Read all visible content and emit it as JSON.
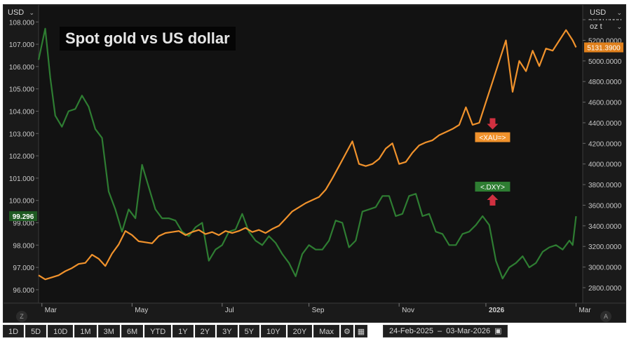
{
  "currency_left": "USD",
  "currency_right": "USD",
  "unit_right": "oz t",
  "title": "Spot gold vs US dollar",
  "zoom_left": "Z",
  "zoom_right": "A",
  "toolbar": {
    "ranges": [
      "1D",
      "5D",
      "10D",
      "1M",
      "3M",
      "6M",
      "YTD",
      "1Y",
      "2Y",
      "3Y",
      "5Y",
      "10Y",
      "20Y",
      "Max"
    ],
    "settings_icon": "gear-icon",
    "table_icon": "spreadsheet-icon",
    "calendar_icon": "calendar-icon",
    "date_from": "24-Feb-2025",
    "date_sep": "–",
    "date_to": "03-Mar-2026"
  },
  "chart_data": {
    "type": "line",
    "grid": false,
    "x_tick_labels": [
      "Mar",
      "May",
      "Jul",
      "Sep",
      "Nov",
      "2026",
      "Mar"
    ],
    "x_tick_positions": [
      0.01,
      0.28,
      0.55,
      0.81,
      1.08,
      1.34,
      1.61
    ],
    "x_range": [
      0,
      1.63
    ],
    "y_left": {
      "range": [
        95.4,
        108.7
      ],
      "ticks": [
        96.0,
        97.0,
        98.0,
        99.0,
        100.0,
        101.0,
        102.0,
        103.0,
        104.0,
        105.0,
        106.0,
        107.0,
        108.0
      ],
      "tick_labels": [
        "96.000",
        "97.000",
        "98.000",
        "99.000",
        "100.000",
        "101.000",
        "102.000",
        "103.000",
        "104.000",
        "105.000",
        "106.000",
        "107.000",
        "108.000"
      ],
      "last_value_label": "99.296",
      "last_value": 99.296
    },
    "y_right": {
      "range": [
        2650,
        5530
      ],
      "ticks": [
        2800,
        3000,
        3200,
        3400,
        3600,
        3800,
        4000,
        4200,
        4400,
        4600,
        4800,
        5000,
        5200,
        5400
      ],
      "tick_labels": [
        "2800.0000",
        "3000.0000",
        "3200.0000",
        "3400.0000",
        "3600.0000",
        "3800.0000",
        "4000.0000",
        "4200.0000",
        "4400.0000",
        "4600.0000",
        "4800.0000",
        "5000.0000",
        "5200.0000",
        "5400.0000"
      ],
      "last_value_label": "5131.3900",
      "last_value": 5131.39
    },
    "series": [
      {
        "name": "<.DXY>",
        "axis": "left",
        "color": "#2e7d32",
        "x": [
          0,
          0.02,
          0.035,
          0.05,
          0.07,
          0.09,
          0.11,
          0.13,
          0.15,
          0.17,
          0.19,
          0.21,
          0.23,
          0.25,
          0.27,
          0.29,
          0.31,
          0.33,
          0.35,
          0.37,
          0.39,
          0.41,
          0.43,
          0.45,
          0.47,
          0.49,
          0.51,
          0.53,
          0.55,
          0.57,
          0.59,
          0.61,
          0.63,
          0.65,
          0.67,
          0.69,
          0.71,
          0.73,
          0.75,
          0.77,
          0.79,
          0.81,
          0.83,
          0.85,
          0.87,
          0.89,
          0.91,
          0.93,
          0.95,
          0.97,
          0.99,
          1.01,
          1.03,
          1.05,
          1.07,
          1.09,
          1.11,
          1.13,
          1.15,
          1.17,
          1.19,
          1.21,
          1.23,
          1.25,
          1.27,
          1.29,
          1.31,
          1.33,
          1.35,
          1.37,
          1.39,
          1.41,
          1.43,
          1.45,
          1.47,
          1.49,
          1.51,
          1.53,
          1.55,
          1.57,
          1.59,
          1.6,
          1.61
        ],
        "values": [
          106.3,
          107.7,
          105.5,
          103.8,
          103.3,
          104.0,
          104.1,
          104.7,
          104.2,
          103.2,
          102.8,
          100.4,
          99.6,
          98.6,
          99.6,
          99.2,
          101.6,
          100.6,
          99.6,
          99.2,
          99.2,
          99.1,
          98.6,
          98.4,
          98.8,
          99.0,
          97.3,
          97.8,
          98.0,
          98.6,
          98.7,
          99.4,
          98.6,
          98.2,
          98.0,
          98.4,
          98.1,
          97.6,
          97.2,
          96.6,
          97.6,
          98.0,
          97.8,
          97.8,
          98.2,
          99.1,
          99.0,
          97.9,
          98.2,
          99.5,
          99.6,
          99.7,
          100.2,
          100.2,
          99.3,
          99.4,
          100.2,
          100.3,
          99.3,
          99.4,
          98.6,
          98.5,
          98.0,
          98.0,
          98.5,
          98.6,
          98.9,
          99.3,
          98.9,
          97.3,
          96.5,
          97.0,
          97.2,
          97.5,
          97.0,
          97.2,
          97.7,
          97.9,
          98.0,
          97.8,
          98.2,
          98.0,
          99.296
        ]
      },
      {
        "name": "<XAU=>",
        "axis": "right",
        "color": "#f0922c",
        "x": [
          0,
          0.02,
          0.04,
          0.06,
          0.08,
          0.1,
          0.12,
          0.14,
          0.16,
          0.18,
          0.2,
          0.22,
          0.24,
          0.26,
          0.28,
          0.3,
          0.32,
          0.34,
          0.36,
          0.38,
          0.4,
          0.42,
          0.44,
          0.46,
          0.48,
          0.5,
          0.52,
          0.54,
          0.56,
          0.58,
          0.6,
          0.62,
          0.64,
          0.66,
          0.68,
          0.7,
          0.72,
          0.74,
          0.76,
          0.78,
          0.8,
          0.82,
          0.84,
          0.86,
          0.88,
          0.9,
          0.92,
          0.94,
          0.96,
          0.98,
          1.0,
          1.02,
          1.04,
          1.06,
          1.08,
          1.1,
          1.12,
          1.14,
          1.16,
          1.18,
          1.2,
          1.22,
          1.24,
          1.26,
          1.28,
          1.3,
          1.32,
          1.34,
          1.36,
          1.38,
          1.4,
          1.42,
          1.44,
          1.46,
          1.48,
          1.5,
          1.52,
          1.54,
          1.56,
          1.58,
          1.6,
          1.61
        ],
        "values": [
          2920,
          2880,
          2900,
          2920,
          2960,
          2990,
          3030,
          3040,
          3120,
          3080,
          3010,
          3130,
          3220,
          3350,
          3310,
          3250,
          3240,
          3230,
          3300,
          3330,
          3340,
          3350,
          3310,
          3340,
          3360,
          3320,
          3340,
          3310,
          3350,
          3330,
          3350,
          3380,
          3340,
          3360,
          3330,
          3370,
          3400,
          3470,
          3540,
          3580,
          3620,
          3650,
          3680,
          3750,
          3860,
          3980,
          4100,
          4220,
          4000,
          3980,
          4000,
          4050,
          4150,
          4200,
          4000,
          4020,
          4110,
          4180,
          4210,
          4230,
          4280,
          4310,
          4340,
          4380,
          4550,
          4380,
          4400,
          4600,
          4800,
          5000,
          5200,
          4700,
          5000,
          4900,
          5100,
          4950,
          5120,
          5100,
          5200,
          5300,
          5200,
          5131.39
        ]
      }
    ],
    "annotations": [
      {
        "label": "<XAU=>",
        "x": 1.36,
        "value": 4260,
        "axis": "right",
        "color": "#f0922c",
        "arrow": "down",
        "arrow_color": "#d03040"
      },
      {
        "label": "<.DXY>",
        "x": 1.36,
        "value": 3780,
        "axis": "right",
        "color": "#2e7d32",
        "arrow": "up",
        "arrow_color": "#d03040"
      }
    ]
  }
}
